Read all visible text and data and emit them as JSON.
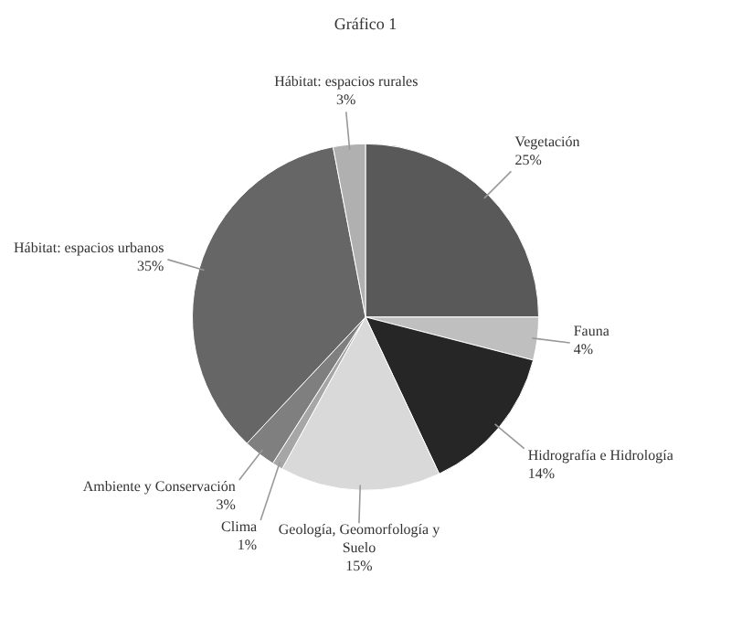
{
  "chart_data": {
    "type": "pie",
    "title": "Gráfico 1",
    "categories": [
      "Vegetación",
      "Fauna",
      "Hidrografía e Hidrología",
      "Geología, Geomorfología y Suelo",
      "Clima",
      "Ambiente y Conservación",
      "Hábitat: espacios urbanos",
      "Hábitat: espacios rurales"
    ],
    "values": [
      25,
      4,
      14,
      15,
      1,
      3,
      35,
      3
    ],
    "colors": [
      "#595959",
      "#bfbfbf",
      "#262626",
      "#d9d9d9",
      "#a6a6a6",
      "#7f7f7f",
      "#666666",
      "#b0b0b0"
    ],
    "value_labels": [
      "25%",
      "4%",
      "14%",
      "15%",
      "1%",
      "3%",
      "35%",
      "3%"
    ],
    "legend": false
  }
}
